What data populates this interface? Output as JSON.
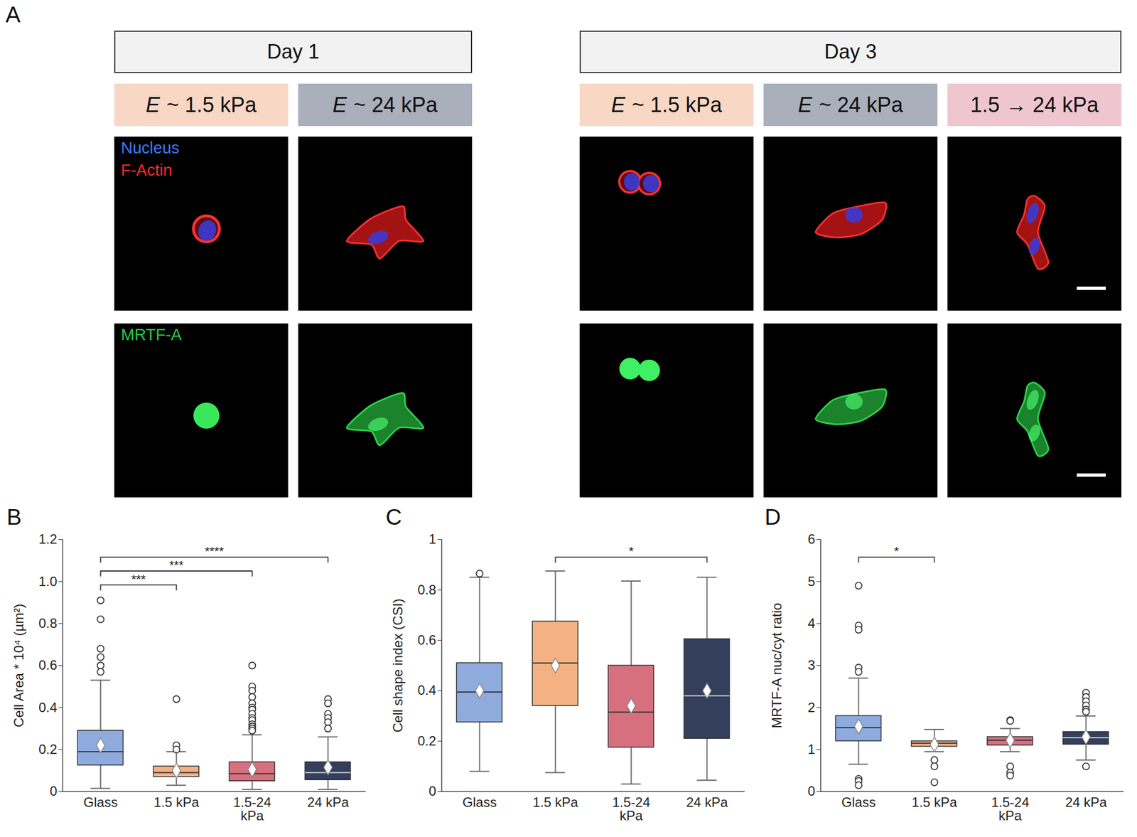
{
  "panel_a": {
    "panel": "A",
    "days": [
      {
        "title": "Day 1",
        "conditions": [
          {
            "symbol": "E",
            "text": "~ 1.5 kPa"
          },
          {
            "symbol": "E",
            "text": "~ 24 kPa"
          }
        ]
      },
      {
        "title": "Day 3",
        "conditions": [
          {
            "symbol": "E",
            "text": "~ 1.5 kPa"
          },
          {
            "symbol": "E",
            "text": "~ 24 kPa"
          },
          {
            "text": "1.5 → 24 kPa"
          }
        ]
      }
    ],
    "stains_row1": [
      "Nucleus",
      "F-Actin"
    ],
    "stains_row2": [
      "MRTF-A"
    ]
  },
  "chart_data": [
    {
      "panel": "B",
      "type": "box",
      "categories": [
        "Glass",
        "1.5 kPa",
        "1.5-24\nkPa",
        "24 kPa"
      ],
      "colors": [
        "#8FAADC",
        "#F4B183",
        "#D6707F",
        "#333F5C"
      ],
      "ylabel": "Cell Area * 10⁴ (µm²)",
      "ylim": [
        0,
        1.2
      ],
      "yticks": [
        0,
        0.2,
        0.4,
        0.6,
        0.8,
        {
          "value": 1,
          "label": "1.0"
        },
        1.2
      ],
      "whisker_low": [
        0.015,
        0.03,
        0.01,
        0.01
      ],
      "q1": [
        0.125,
        0.07,
        0.05,
        0.055
      ],
      "median": [
        0.19,
        0.09,
        0.085,
        0.09
      ],
      "q3": [
        0.29,
        0.12,
        0.14,
        0.14
      ],
      "whisker_high": [
        0.53,
        0.19,
        0.27,
        0.26
      ],
      "mean": [
        0.22,
        0.1,
        0.105,
        0.115
      ],
      "outliers": [
        [
          0.91,
          0.82,
          0.68,
          0.64,
          0.6,
          0.57
        ],
        [
          0.44,
          0.22,
          0.2
        ],
        [
          0.6,
          0.5,
          0.48,
          0.45,
          0.42,
          0.4,
          0.39,
          0.37,
          0.35,
          0.34,
          0.32,
          0.31,
          0.3,
          0.29
        ],
        [
          0.44,
          0.42,
          0.37,
          0.35,
          0.33,
          0.3
        ]
      ],
      "significance": [
        {
          "from": "Glass",
          "to": "1.5 kPa",
          "label": "***"
        },
        {
          "from": "Glass",
          "to": "1.5-24\nkPa",
          "label": "***"
        },
        {
          "from": "Glass",
          "to": "24 kPa",
          "label": "****"
        }
      ]
    },
    {
      "panel": "C",
      "type": "box",
      "categories": [
        "Glass",
        "1.5 kPa",
        "1.5-24\nkPa",
        "24 kPa"
      ],
      "colors": [
        "#8FAADC",
        "#F4B183",
        "#D6707F",
        "#333F5C"
      ],
      "ylabel": "Cell shape index (CSI)",
      "ylim": [
        0,
        1
      ],
      "yticks": [
        0,
        0.2,
        0.4,
        0.6,
        0.8,
        1
      ],
      "whisker_low": [
        0.08,
        0.075,
        0.03,
        0.045
      ],
      "q1": [
        0.275,
        0.34,
        0.175,
        0.21
      ],
      "median": [
        0.395,
        0.51,
        0.315,
        0.38
      ],
      "q3": [
        0.51,
        0.675,
        0.5,
        0.605
      ],
      "whisker_high": [
        0.85,
        0.875,
        0.835,
        0.85
      ],
      "mean": [
        0.4,
        0.5,
        0.34,
        0.4
      ],
      "outliers": [
        [
          0.865
        ],
        [],
        [],
        []
      ],
      "significance": [
        {
          "from": "1.5 kPa",
          "to": "24 kPa",
          "label": "*"
        }
      ]
    },
    {
      "panel": "D",
      "type": "box",
      "categories": [
        "Glass",
        "1.5 kPa",
        "1.5-24\nkPa",
        "24 kPa"
      ],
      "colors": [
        "#8FAADC",
        "#F4B183",
        "#D6707F",
        "#333F5C"
      ],
      "ylabel": "MRTF-A nuc/cyt ratio",
      "ylim": [
        0,
        6
      ],
      "yticks": [
        0,
        1,
        2,
        3,
        4,
        5,
        6
      ],
      "whisker_low": [
        0.65,
        0.95,
        0.95,
        0.75
      ],
      "q1": [
        1.2,
        1.07,
        1.1,
        1.12
      ],
      "median": [
        1.52,
        1.15,
        1.22,
        1.28
      ],
      "q3": [
        1.8,
        1.2,
        1.3,
        1.42
      ],
      "whisker_high": [
        2.7,
        1.48,
        1.5,
        1.8
      ],
      "mean": [
        1.55,
        1.12,
        1.22,
        1.3
      ],
      "outliers": [
        [
          4.9,
          3.95,
          3.85,
          2.95,
          2.85,
          0.3,
          0.25,
          0.15
        ],
        [
          0.75,
          0.6,
          0.22
        ],
        [
          1.7,
          1.68,
          0.6,
          0.45,
          0.38
        ],
        [
          2.35,
          2.25,
          2.15,
          2.05,
          1.95,
          1.9,
          0.6
        ]
      ],
      "significance": [
        {
          "from": "Glass",
          "to": "1.5 kPa",
          "label": "*"
        }
      ]
    }
  ]
}
